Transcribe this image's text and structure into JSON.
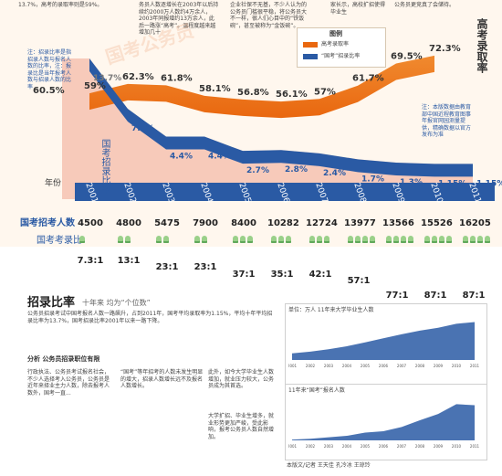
{
  "header": {
    "top_left_text": "13.7%，高考的录取率则是59%。",
    "top_mid_text": "务员人数逐增长在2003年以后持续约2000万人数约4万余人，2003年同报增约13万余人，此后一路涨“高考”。温程度越来越增加几十",
    "top_mid2_text": "企业社保不无基，不少人认为的公务员门槛很平稳，将公务员大不一样，很人们心目中的“铁饭碗”，甚至被称为“金饭碗”。",
    "top_right_text": "家长示，高校扩招使得毕业生",
    "top_right2_text": "公务员更竞真了会储待。",
    "side_note": "注：招录比率是指招录人数与报名人数的比率，注：报录比是当年报考人数与招录人数的比率",
    "source_note": "注：本版数据由教育部中国近程教育图事年报官网园测量提供，精确数据以官方发布为准",
    "watermark": "国考公务员"
  },
  "colors": {
    "exam": "#e9670f",
    "civil": "#2a5aa4",
    "civil_fill": "#f3b6a4",
    "back": "#fcebd8",
    "people": "#9ad089"
  },
  "legend": {
    "title": "图例",
    "exam_label": "高考录取率",
    "civil_label": "“国考”招录比率"
  },
  "labels": {
    "exam_axis": "高考录取率",
    "civil_axis": "国考招录比率",
    "year_label": "年份",
    "applicants_label": "国考招考人数",
    "ratio_label": "国考考录比"
  },
  "chart_data": [
    {
      "type": "line",
      "title": "",
      "xlabel": "年份",
      "ylabel": "录取率",
      "years": [
        "2001",
        "2002",
        "2003",
        "2004",
        "2005",
        "2006",
        "2007",
        "2008",
        "2009",
        "2010",
        "2011"
      ],
      "series": [
        {
          "name": "高考录取率",
          "values": [
            59,
            62.3,
            61.8,
            58.1,
            56.8,
            56.1,
            57,
            61.7,
            69.5,
            72.3,
            null
          ],
          "labels": [
            "59%",
            "62.3%",
            "61.8%",
            "58.1%",
            "56.8%",
            "56.1%",
            "57%",
            "61.7%",
            "69.5%",
            "72.3%",
            ""
          ]
        },
        {
          "name": "国考招录比率",
          "values": [
            13.7,
            7.7,
            4.4,
            4.4,
            2.7,
            2.8,
            2.4,
            1.7,
            1.3,
            1.15,
            1.15
          ],
          "labels": [
            "13.7%",
            "7.7%",
            "4.4%",
            "4.4%",
            "2.7%",
            "2.8%",
            "2.4%",
            "1.7%",
            "1.3%",
            "1.15%",
            "1.15%"
          ]
        }
      ],
      "extra_label": "60.5%"
    },
    {
      "type": "table",
      "categories": [
        "2001",
        "2002",
        "2003",
        "2004",
        "2005",
        "2006",
        "2007",
        "2008",
        "2009",
        "2010",
        "2011"
      ],
      "applicants": [
        "4500",
        "4800",
        "5475",
        "7900",
        "8400",
        "10282",
        "12724",
        "13977",
        "13566",
        "15526",
        "16205"
      ],
      "ratios": [
        "7.3:1",
        "13:1",
        "23:1",
        "23:1",
        "37:1",
        "35:1",
        "42:1",
        "57:1",
        "77:1",
        "87:1",
        "87:1"
      ]
    }
  ],
  "article": {
    "heading": "招录比率",
    "subheading": "十年来 均为“个位数”",
    "para1": "公务员招录考试中国考报名人数一路飙升，占到2011年，国考平均录取率为1.15%，平均十年平均招录比率为13.7%，国考招录比率2001年以来一路下降。",
    "section2_title": "分析  公务员招录职位有限",
    "para2": "行政执法、公务员考试报名社会，不少人选择考入公务员，公务员是近年来择业主力人数，除去报考人数外，国考一直...",
    "para3": "“国考”等年招考的人数未发生明显的增大，招录人数增长远不及报名人数增长。",
    "para4": "此外，如今大学毕业生人数增加，就业压力较大，公务员成为其首选。",
    "para5": "大学扩招、毕业生增多，就业形势更加严峻，受此影响，报考公务员人数自然增加。"
  },
  "mini_charts": {
    "title1": "单位：万人  11年来大学毕业生人数",
    "title2": "11年来“国考”报名人数",
    "grads": [
      115,
      145,
      187,
      239,
      307,
      377,
      447,
      512,
      560,
      630,
      660
    ],
    "applicants": [
      3.3,
      6.2,
      12.5,
      18,
      31,
      36.5,
      53,
      80,
      105,
      144,
      140
    ],
    "years": [
      "2001",
      "2002",
      "2003",
      "2004",
      "2005",
      "2006",
      "2007",
      "2008",
      "2009",
      "2010",
      "2011"
    ],
    "footer": "本版文/记者 王天佳 孔冷冰 王琼玲"
  }
}
